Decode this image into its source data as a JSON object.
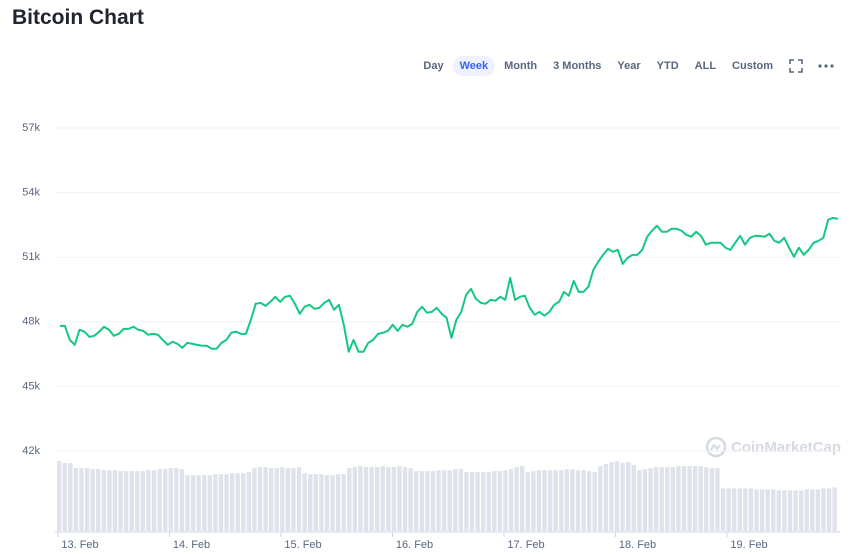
{
  "header": {
    "title": "Bitcoin Chart"
  },
  "range_buttons": {
    "items": [
      "Day",
      "Week",
      "Month",
      "3 Months",
      "Year",
      "YTD",
      "ALL",
      "Custom"
    ],
    "selected": 1
  },
  "watermark": "CoinMarketCap",
  "chart_data": {
    "type": "line",
    "color": "#16c784",
    "ylim": [
      42000,
      57000
    ],
    "yticks": [
      {
        "value": 57000,
        "label": "57k"
      },
      {
        "value": 54000,
        "label": "54k"
      },
      {
        "value": 51000,
        "label": "51k"
      },
      {
        "value": 48000,
        "label": "48k"
      },
      {
        "value": 45000,
        "label": "45k"
      },
      {
        "value": 42000,
        "label": "42k"
      }
    ],
    "grid": true,
    "x_labels": [
      "13. Feb",
      "14. Feb",
      "15. Feb",
      "16. Feb",
      "17. Feb",
      "18. Feb",
      "19. Feb"
    ],
    "values": [
      47810,
      47810,
      47160,
      46930,
      47630,
      47540,
      47300,
      47350,
      47540,
      47770,
      47630,
      47350,
      47440,
      47670,
      47670,
      47770,
      47630,
      47580,
      47400,
      47440,
      47400,
      47160,
      46930,
      47070,
      46980,
      46790,
      47020,
      46980,
      46930,
      46890,
      46890,
      46750,
      46750,
      47020,
      47160,
      47490,
      47540,
      47440,
      47440,
      48090,
      48840,
      48880,
      48740,
      48930,
      49160,
      48930,
      49160,
      49210,
      48840,
      48370,
      48700,
      48790,
      48600,
      48650,
      48880,
      49020,
      48560,
      48790,
      47860,
      46610,
      47160,
      46610,
      46610,
      47020,
      47160,
      47440,
      47490,
      47580,
      47860,
      47580,
      47860,
      47770,
      47910,
      48460,
      48700,
      48420,
      48460,
      48650,
      48370,
      48190,
      47260,
      48090,
      48460,
      49250,
      49530,
      49070,
      48880,
      48840,
      49020,
      48980,
      49160,
      49020,
      50040,
      49020,
      49160,
      49210,
      48650,
      48330,
      48460,
      48280,
      48460,
      48790,
      48930,
      49390,
      49210,
      49900,
      49390,
      49390,
      49630,
      50410,
      50790,
      51110,
      51390,
      51250,
      51340,
      50690,
      50970,
      51110,
      51110,
      51340,
      51950,
      52230,
      52460,
      52180,
      52180,
      52320,
      52320,
      52230,
      52040,
      51950,
      52180,
      51990,
      51580,
      51670,
      51670,
      51670,
      51440,
      51340,
      51670,
      51990,
      51580,
      51900,
      51990,
      51990,
      51950,
      52090,
      51760,
      51670,
      51900,
      51440,
      51020,
      51440,
      51110,
      51340,
      51670,
      51760,
      51900,
      52740,
      52830,
      52780
    ],
    "volume": {
      "color": "#dfe2ea",
      "values": [
        69,
        67,
        67,
        62,
        62,
        62,
        61,
        61,
        60,
        60,
        60,
        59,
        59,
        59,
        59,
        59,
        60,
        60,
        61,
        61,
        62,
        62,
        61,
        55,
        55,
        55,
        55,
        55,
        56,
        56,
        56,
        57,
        57,
        57,
        58,
        62,
        63,
        63,
        62,
        62,
        63,
        62,
        62,
        63,
        57,
        56,
        56,
        56,
        55,
        55,
        56,
        56,
        62,
        63,
        64,
        63,
        63,
        63,
        64,
        63,
        63,
        64,
        63,
        62,
        59,
        59,
        59,
        59,
        60,
        60,
        60,
        61,
        61,
        58,
        58,
        58,
        58,
        58,
        59,
        59,
        60,
        61,
        63,
        64,
        58,
        59,
        60,
        60,
        60,
        60,
        60,
        61,
        61,
        60,
        60,
        59,
        58,
        64,
        66,
        68,
        69,
        67,
        68,
        65,
        60,
        61,
        62,
        63,
        63,
        63,
        63,
        64,
        64,
        64,
        64,
        64,
        63,
        62,
        62,
        42,
        42,
        42,
        42,
        42,
        42,
        41,
        41,
        41,
        41,
        40,
        40,
        40,
        40,
        40,
        41,
        41,
        41,
        42,
        42,
        43
      ]
    }
  }
}
